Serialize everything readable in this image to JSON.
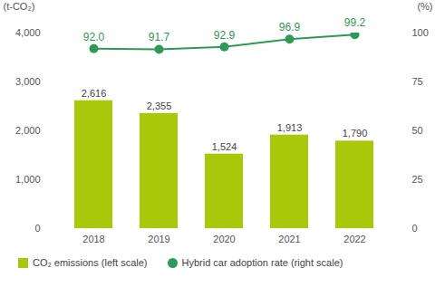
{
  "chart_data": {
    "type": "bar",
    "categories": [
      "2018",
      "2019",
      "2020",
      "2021",
      "2022"
    ],
    "series": [
      {
        "name": "CO₂ emissions (left scale)",
        "type": "bar",
        "color": "#a9c80a",
        "values": [
          2616,
          2355,
          1524,
          1913,
          1790
        ],
        "value_labels": [
          "2,616",
          "2,355",
          "1,524",
          "1,913",
          "1,790"
        ]
      },
      {
        "name": "Hybrid car adoption rate (right scale)",
        "type": "line",
        "axis": "y2",
        "marker": "circle",
        "color": "#2e9a55",
        "values": [
          92.0,
          91.7,
          92.9,
          96.9,
          99.2
        ],
        "value_labels": [
          "92.0",
          "91.7",
          "92.9",
          "96.9",
          "99.2"
        ]
      }
    ],
    "ylabel": "(t-CO₂)",
    "y2label": "(%)",
    "ylim": [
      0,
      4000
    ],
    "yticks": [
      0,
      {
        "value": 1000,
        "label": "1,000"
      },
      {
        "value": 2000,
        "label": "2,000"
      },
      {
        "value": 3000,
        "label": "3,000"
      },
      {
        "value": 4000,
        "label": "4,000"
      }
    ],
    "y2lim": [
      0,
      100
    ],
    "y2ticks": [
      0,
      25,
      50,
      75,
      100
    ],
    "data_labels": true,
    "grid": false,
    "legend": "bottom"
  }
}
